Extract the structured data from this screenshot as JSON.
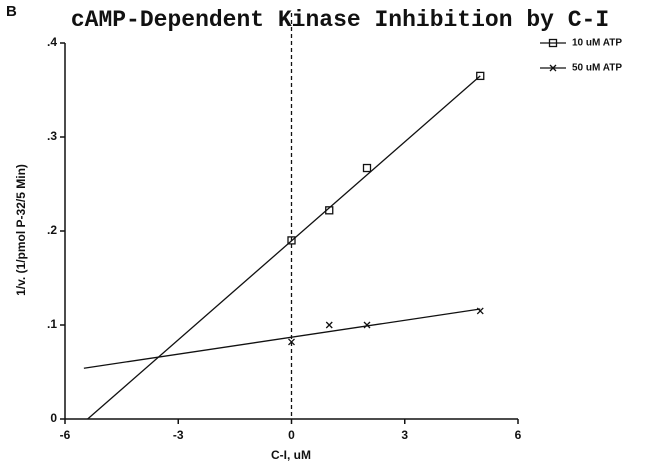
{
  "chart_data": {
    "type": "scatter",
    "panel_label": "B",
    "title": "cAMP-Dependent Kinase Inhibition by C-I",
    "x_label": "C-I, uM",
    "y_label": "1/v. (1/pmol  P-32/5 Min)",
    "x": [
      0,
      1,
      2,
      5
    ],
    "series": [
      {
        "name": "10 uM ATP",
        "marker": "square",
        "color": "#111",
        "values": [
          0.19,
          0.222,
          0.267,
          0.365
        ],
        "fit": {
          "x": [
            -5.4,
            5
          ],
          "y": [
            0,
            0.365
          ]
        }
      },
      {
        "name": "50 uM ATP",
        "marker": "x",
        "color": "#111",
        "values": [
          0.082,
          0.1,
          0.1,
          0.115
        ],
        "fit": {
          "x": [
            -5.5,
            5
          ],
          "y": [
            0.054,
            0.117
          ]
        }
      }
    ],
    "reference_x": 0,
    "xlim": [
      -6,
      6
    ],
    "xticks": [
      -6,
      -3,
      0,
      3,
      6
    ],
    "ylim": [
      0,
      0.4
    ],
    "yticks": [
      0,
      {
        "value": 0.1,
        "label": ".1"
      },
      {
        "value": 0.2,
        "label": ".2"
      },
      {
        "value": 0.3,
        "label": ".3"
      },
      {
        "value": 0.4,
        "label": ".4"
      }
    ],
    "legend": "top-right"
  }
}
